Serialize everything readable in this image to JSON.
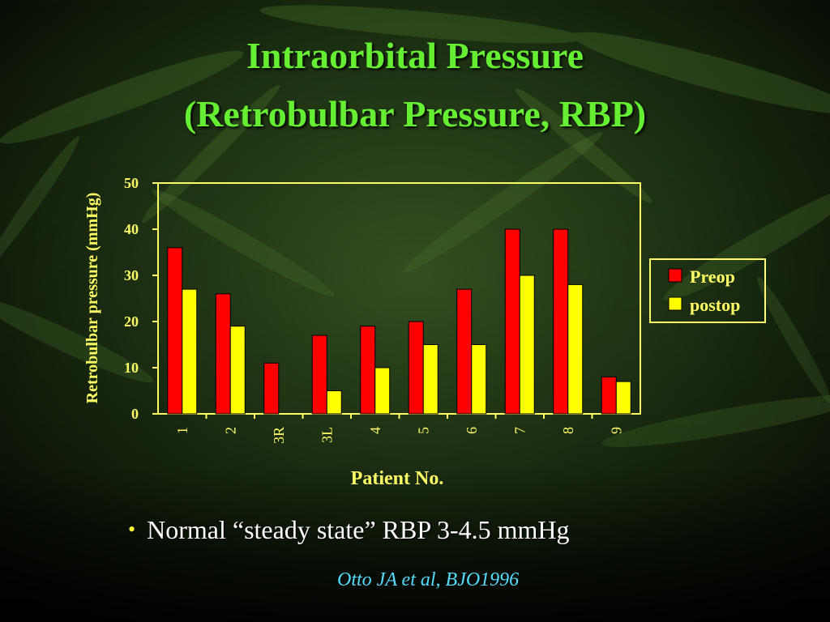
{
  "slide": {
    "title_line1": "Intraorbital Pressure",
    "title_line2": "(Retrobulbar Pressure, RBP)",
    "bullet": "Normal “steady state” RBP 3-4.5 mmHg",
    "citation": "Otto JA et al, BJO1996"
  },
  "colors": {
    "preop": "#ff0000",
    "postop": "#ffff00",
    "axis": "#ffff66",
    "title": "#66ee33"
  },
  "chart_data": {
    "type": "bar",
    "title": "",
    "xlabel": "Patient No.",
    "ylabel": "Retrobulbar pressure (mmHg)",
    "ylim": [
      0,
      50
    ],
    "yticks": [
      0,
      10,
      20,
      30,
      40,
      50
    ],
    "grid": false,
    "legend_position": "right",
    "categories": [
      "1",
      "2",
      "3R",
      "3L",
      "4",
      "5",
      "6",
      "7",
      "8",
      "9"
    ],
    "series": [
      {
        "name": "Preop",
        "values": [
          36,
          26,
          11,
          17,
          19,
          20,
          27,
          40,
          40,
          8
        ]
      },
      {
        "name": "postop",
        "values": [
          27,
          19,
          0,
          5,
          10,
          15,
          15,
          30,
          28,
          7
        ]
      }
    ]
  }
}
